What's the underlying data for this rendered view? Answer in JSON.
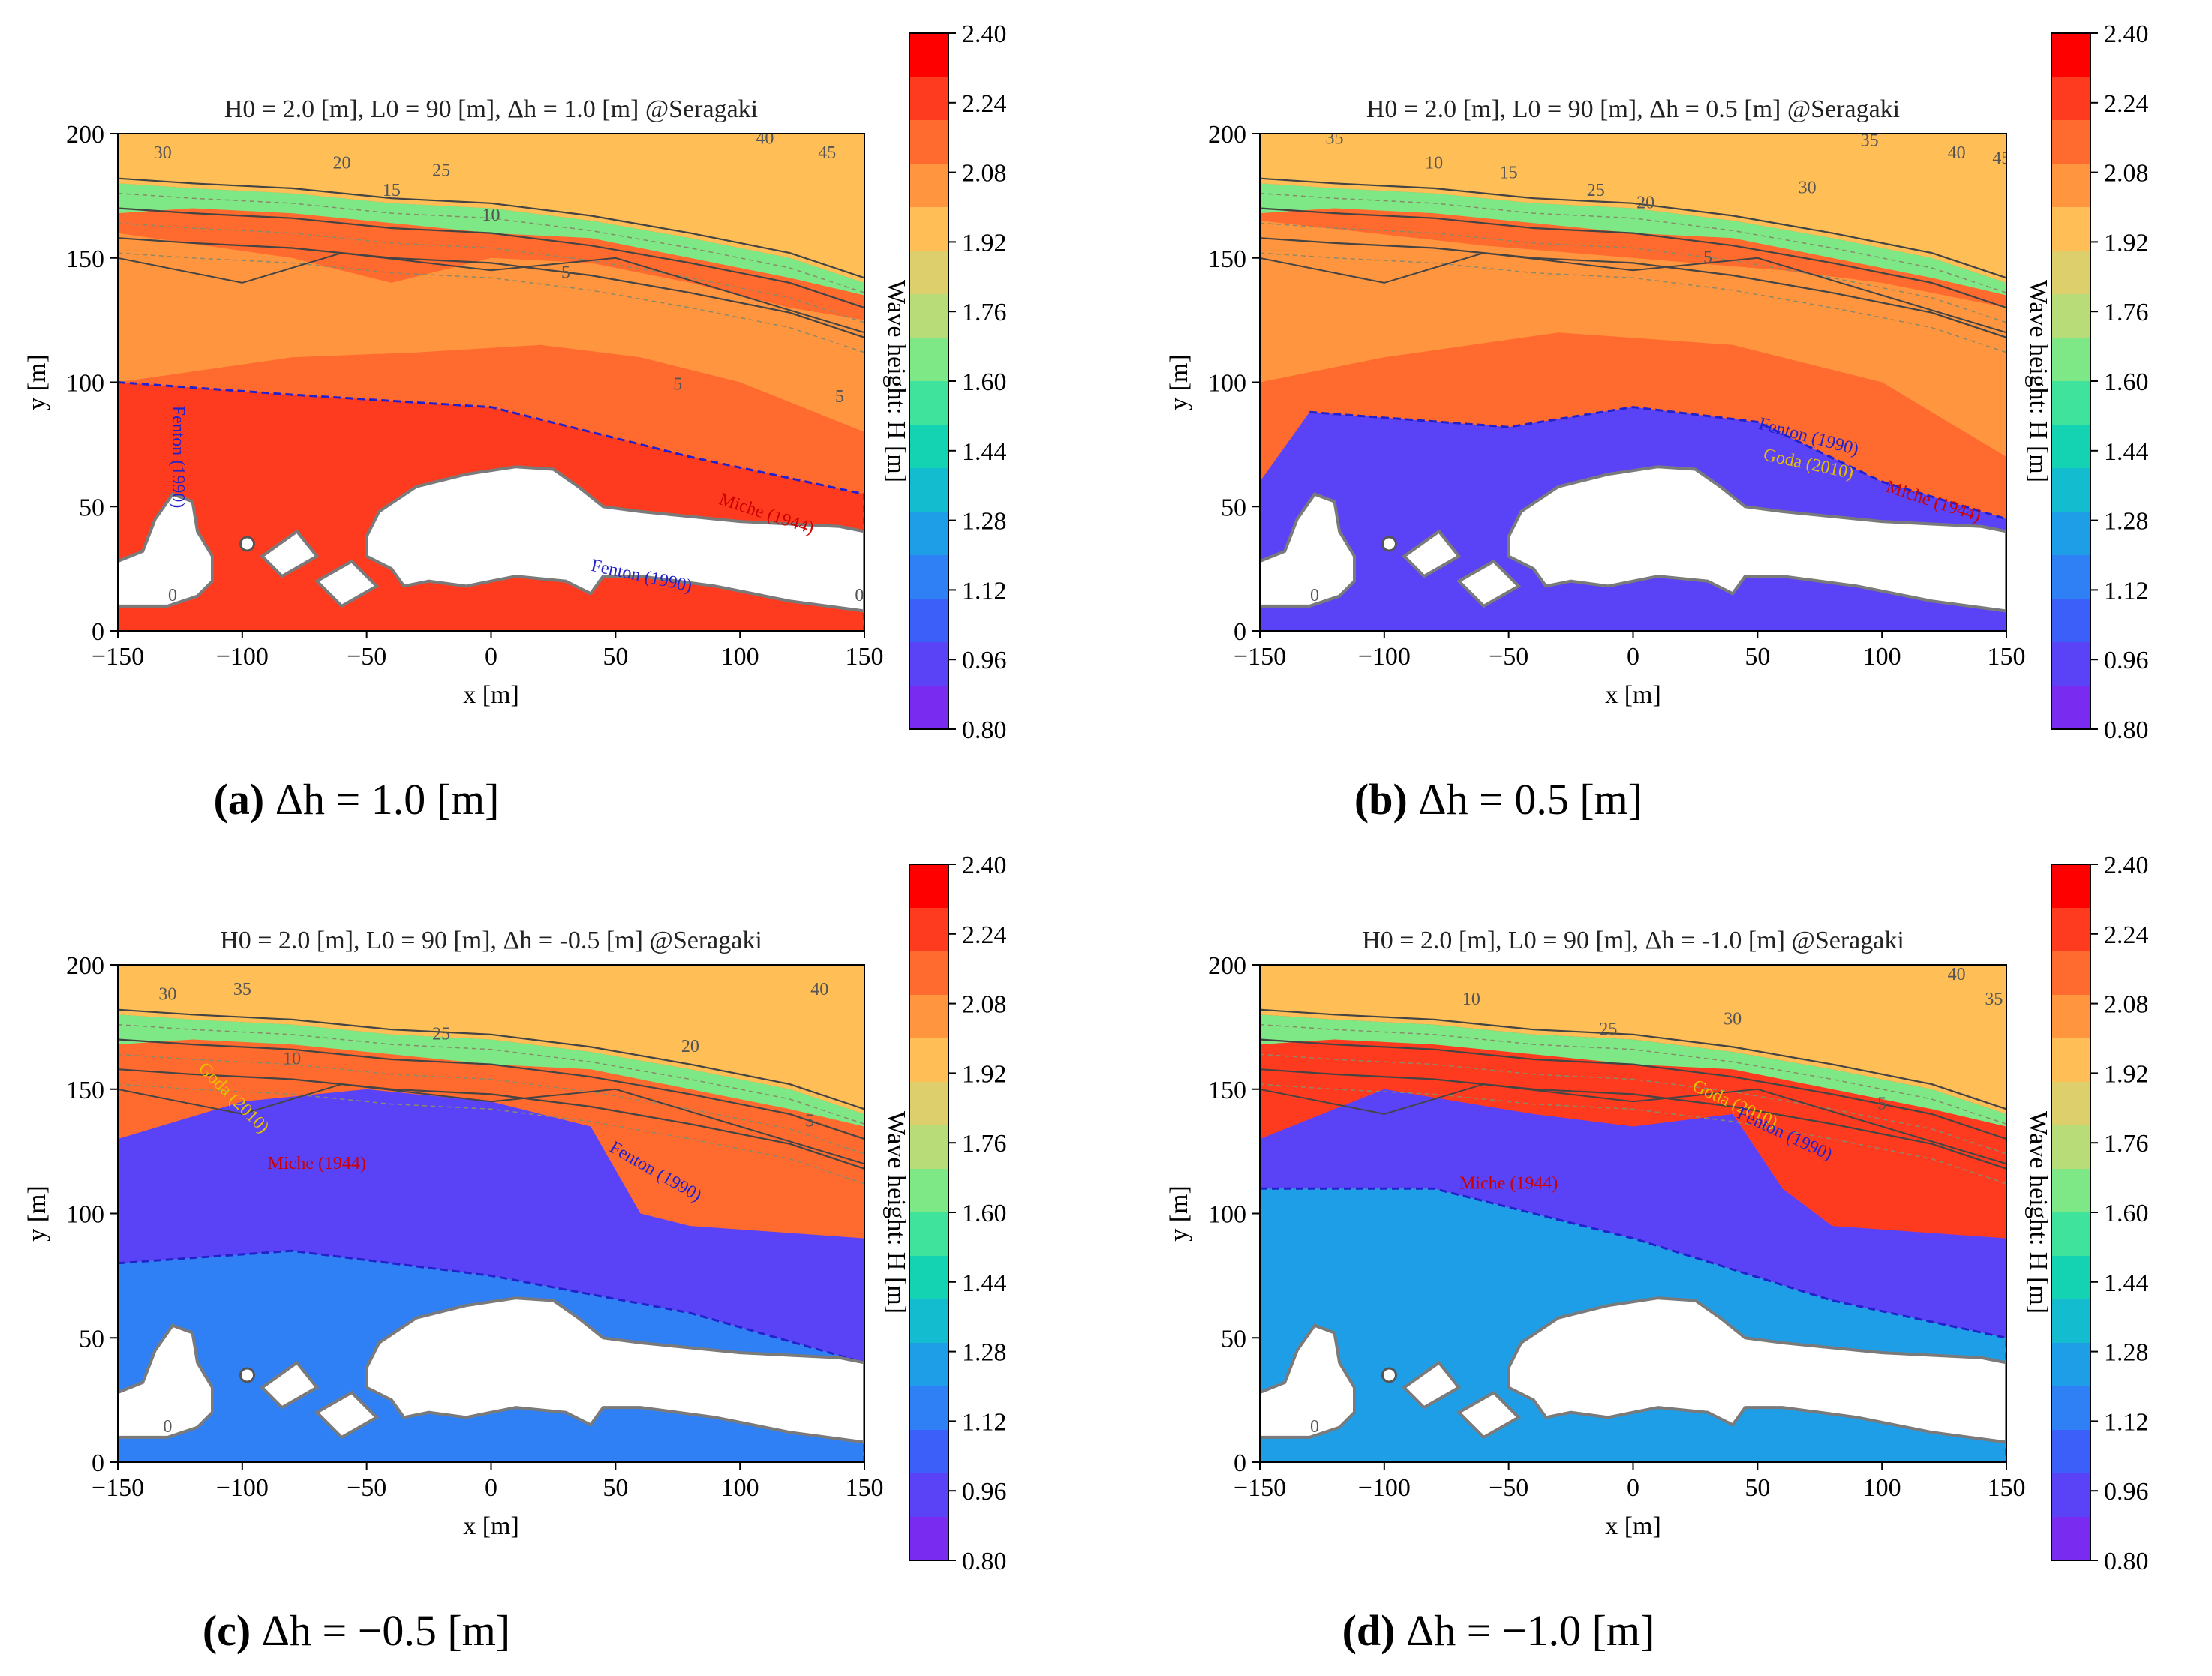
{
  "figure": {
    "colorbar_label": "Wave height: H [m]",
    "colorbar_ticks": [
      "2.40",
      "2.24",
      "2.08",
      "1.92",
      "1.76",
      "1.60",
      "1.44",
      "1.28",
      "1.12",
      "0.96",
      "0.80"
    ],
    "colorbar_colors": [
      "#ff0000",
      "#ff3b1f",
      "#ff6a2e",
      "#ff953f",
      "#ffbe56",
      "#dccf6c",
      "#b8dd78",
      "#7ee887",
      "#3fe39b",
      "#14d3b3",
      "#14bcd0",
      "#1f9ee8",
      "#2f7ff5",
      "#3c5ef9",
      "#5a43f7",
      "#7a2bf0"
    ],
    "x_ticks": [
      "−150",
      "−100",
      "−50",
      "0",
      "50",
      "100",
      "150"
    ],
    "y_ticks": [
      "0",
      "50",
      "100",
      "150",
      "200"
    ],
    "xlabel": "x [m]",
    "ylabel": "y [m]"
  },
  "chart_data": [
    {
      "type": "contour",
      "id": "a",
      "title": "H0 = 2.0 [m], L0 = 90 [m], Δh = 1.0 [m] @Seragaki",
      "caption_letter": "(a)",
      "caption_text": " Δh = 1.0 [m]",
      "xlim": [
        -150,
        150
      ],
      "ylim": [
        0,
        200
      ],
      "xlabel": "x [m]",
      "ylabel": "y [m]",
      "colorbar": {
        "label": "Wave height: H [m]",
        "min": 0.8,
        "max": 2.4
      },
      "depth_contour_labels": [
        "30",
        "20",
        "25",
        "15",
        "10",
        "5",
        "5",
        "5",
        "40",
        "45",
        "0",
        "0"
      ],
      "breaking_line_labels": [
        "Fenton (1990)",
        "Miche (1944)",
        "Fenton (1990)"
      ]
    },
    {
      "type": "contour",
      "id": "b",
      "title": "H0 = 2.0 [m], L0 = 90 [m], Δh = 0.5 [m] @Seragaki",
      "caption_letter": "(b)",
      "caption_text": " Δh = 0.5 [m]",
      "xlim": [
        -150,
        150
      ],
      "ylim": [
        0,
        200
      ],
      "xlabel": "x [m]",
      "ylabel": "y [m]",
      "colorbar": {
        "label": "Wave height: H [m]",
        "min": 0.8,
        "max": 2.4
      },
      "depth_contour_labels": [
        "35",
        "10",
        "15",
        "25",
        "20",
        "30",
        "35",
        "40",
        "45",
        "5",
        "0"
      ],
      "breaking_line_labels": [
        "Fenton (1990)",
        "Goda (2010)",
        "Miche (1944)"
      ]
    },
    {
      "type": "contour",
      "id": "c",
      "title": "H0 = 2.0 [m], L0 = 90 [m], Δh = -0.5 [m] @Seragaki",
      "caption_letter": "(c)",
      "caption_text": " Δh = −0.5 [m]",
      "xlim": [
        -150,
        150
      ],
      "ylim": [
        0,
        200
      ],
      "xlabel": "x [m]",
      "ylabel": "y [m]",
      "colorbar": {
        "label": "Wave height: H [m]",
        "min": 0.8,
        "max": 2.4
      },
      "depth_contour_labels": [
        "30",
        "35",
        "10",
        "25",
        "20",
        "40",
        "5",
        "0"
      ],
      "breaking_line_labels": [
        "Goda (2010)",
        "Miche (1944)",
        "Fenton (1990)"
      ]
    },
    {
      "type": "contour",
      "id": "d",
      "title": "H0 = 2.0 [m], L0 = 90 [m], Δh = -1.0 [m] @Seragaki",
      "caption_letter": "(d)",
      "caption_text": " Δh = −1.0 [m]",
      "xlim": [
        -150,
        150
      ],
      "ylim": [
        0,
        200
      ],
      "xlabel": "x [m]",
      "ylabel": "y [m]",
      "colorbar": {
        "label": "Wave height: H [m]",
        "min": 0.8,
        "max": 2.4
      },
      "depth_contour_labels": [
        "10",
        "25",
        "30",
        "40",
        "35",
        "5",
        "0"
      ],
      "breaking_line_labels": [
        "Goda (2010)",
        "Fenton (1990)",
        "Miche (1944)"
      ]
    }
  ]
}
